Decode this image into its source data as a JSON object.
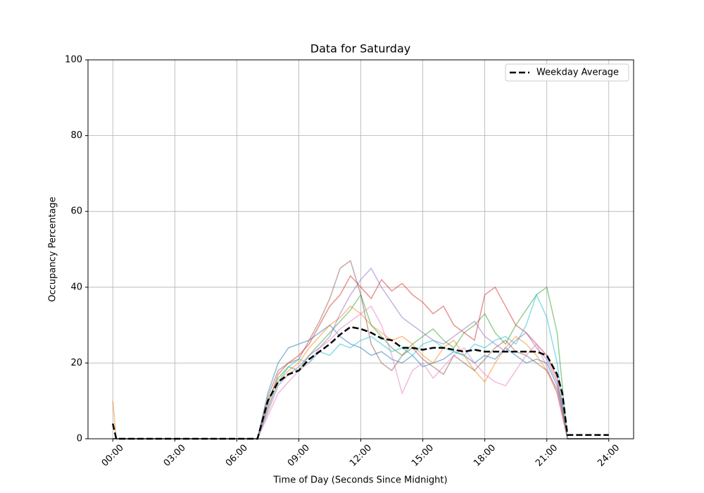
{
  "chart_data": {
    "type": "line",
    "title": "Data for Saturday",
    "xlabel": "Time of Day (Seconds Since Midnight)",
    "ylabel": "Occupancy Percentage",
    "x": [
      0,
      600,
      10800,
      21600,
      25200,
      27000,
      28800,
      30600,
      32400,
      34200,
      36000,
      37800,
      39600,
      41400,
      43200,
      45000,
      46800,
      48600,
      50400,
      52200,
      54000,
      55800,
      57600,
      59400,
      61200,
      63000,
      64800,
      66600,
      68400,
      70200,
      72000,
      73800,
      75600,
      77400,
      78300,
      79200,
      86400
    ],
    "series": [
      {
        "color": "#1f77b4",
        "values": [
          0,
          0,
          0,
          0,
          0,
          12,
          20,
          24,
          25,
          26,
          28,
          30,
          27,
          25,
          24,
          22,
          23,
          21,
          20,
          22,
          19,
          20,
          21,
          23,
          22,
          20,
          22,
          21,
          24,
          22,
          20,
          21,
          20,
          14,
          8,
          0,
          0
        ]
      },
      {
        "color": "#ff7f0e",
        "values": [
          10,
          0,
          0,
          0,
          0,
          8,
          15,
          18,
          20,
          24,
          27,
          30,
          32,
          35,
          33,
          30,
          28,
          26,
          27,
          25,
          22,
          20,
          24,
          26,
          22,
          18,
          15,
          20,
          24,
          27,
          25,
          22,
          18,
          12,
          6,
          0,
          0
        ]
      },
      {
        "color": "#2ca02c",
        "values": [
          0,
          0,
          0,
          0,
          0,
          10,
          16,
          19,
          18,
          22,
          25,
          28,
          31,
          34,
          38,
          30,
          27,
          24,
          22,
          25,
          27,
          29,
          26,
          24,
          28,
          30,
          33,
          28,
          25,
          30,
          34,
          38,
          40,
          28,
          14,
          0,
          0
        ]
      },
      {
        "color": "#d62728",
        "values": [
          0,
          0,
          0,
          0,
          0,
          9,
          17,
          20,
          22,
          25,
          30,
          35,
          38,
          43,
          40,
          37,
          42,
          39,
          41,
          38,
          36,
          33,
          35,
          30,
          28,
          26,
          38,
          40,
          35,
          30,
          28,
          25,
          22,
          16,
          9,
          0,
          0
        ]
      },
      {
        "color": "#9467bd",
        "values": [
          0,
          0,
          0,
          0,
          0,
          7,
          14,
          17,
          19,
          22,
          24,
          27,
          33,
          38,
          42,
          45,
          40,
          36,
          32,
          30,
          28,
          26,
          25,
          27,
          29,
          31,
          27,
          25,
          23,
          26,
          28,
          24,
          21,
          15,
          8,
          0,
          0
        ]
      },
      {
        "color": "#8c564b",
        "values": [
          0,
          0,
          0,
          0,
          0,
          11,
          18,
          20,
          21,
          26,
          31,
          37,
          45,
          47,
          38,
          25,
          20,
          18,
          22,
          24,
          21,
          19,
          17,
          22,
          20,
          18,
          21,
          24,
          26,
          23,
          22,
          20,
          18,
          13,
          7,
          0,
          0
        ]
      },
      {
        "color": "#e377c2",
        "values": [
          0,
          0,
          0,
          0,
          0,
          6,
          12,
          15,
          18,
          20,
          24,
          26,
          29,
          31,
          33,
          35,
          30,
          22,
          12,
          18,
          20,
          16,
          19,
          22,
          24,
          20,
          17,
          15,
          14,
          18,
          22,
          25,
          19,
          12,
          6,
          0,
          0
        ]
      },
      {
        "color": "#17becf",
        "values": [
          0,
          0,
          0,
          0,
          0,
          8,
          15,
          19,
          21,
          20,
          23,
          22,
          25,
          24,
          26,
          27,
          25,
          23,
          24,
          22,
          25,
          26,
          24,
          23,
          22,
          25,
          24,
          26,
          27,
          25,
          30,
          38,
          32,
          20,
          10,
          0,
          0
        ]
      },
      {
        "name": "Weekday Average",
        "color": "#000000",
        "dashed": true,
        "values": [
          4,
          0,
          0,
          0,
          0,
          10,
          15,
          17,
          18,
          21,
          23,
          25,
          27.5,
          29.5,
          29,
          28,
          26.5,
          26,
          24,
          24,
          23.5,
          24,
          24,
          23.5,
          23,
          23.5,
          23,
          23,
          23,
          23,
          23,
          23,
          22,
          17,
          12,
          1,
          1
        ]
      }
    ],
    "xlim": [
      -4320,
      90720
    ],
    "ylim": [
      0,
      100
    ],
    "xticks": [
      {
        "value": 0,
        "label": "00:00"
      },
      {
        "value": 10800,
        "label": "03:00"
      },
      {
        "value": 21600,
        "label": "06:00"
      },
      {
        "value": 32400,
        "label": "09:00"
      },
      {
        "value": 43200,
        "label": "12:00"
      },
      {
        "value": 54000,
        "label": "15:00"
      },
      {
        "value": 64800,
        "label": "18:00"
      },
      {
        "value": 75600,
        "label": "21:00"
      },
      {
        "value": 86400,
        "label": "24:00"
      }
    ],
    "yticks": [
      0,
      20,
      40,
      60,
      80,
      100
    ],
    "grid": true,
    "legend": "upper-right"
  }
}
